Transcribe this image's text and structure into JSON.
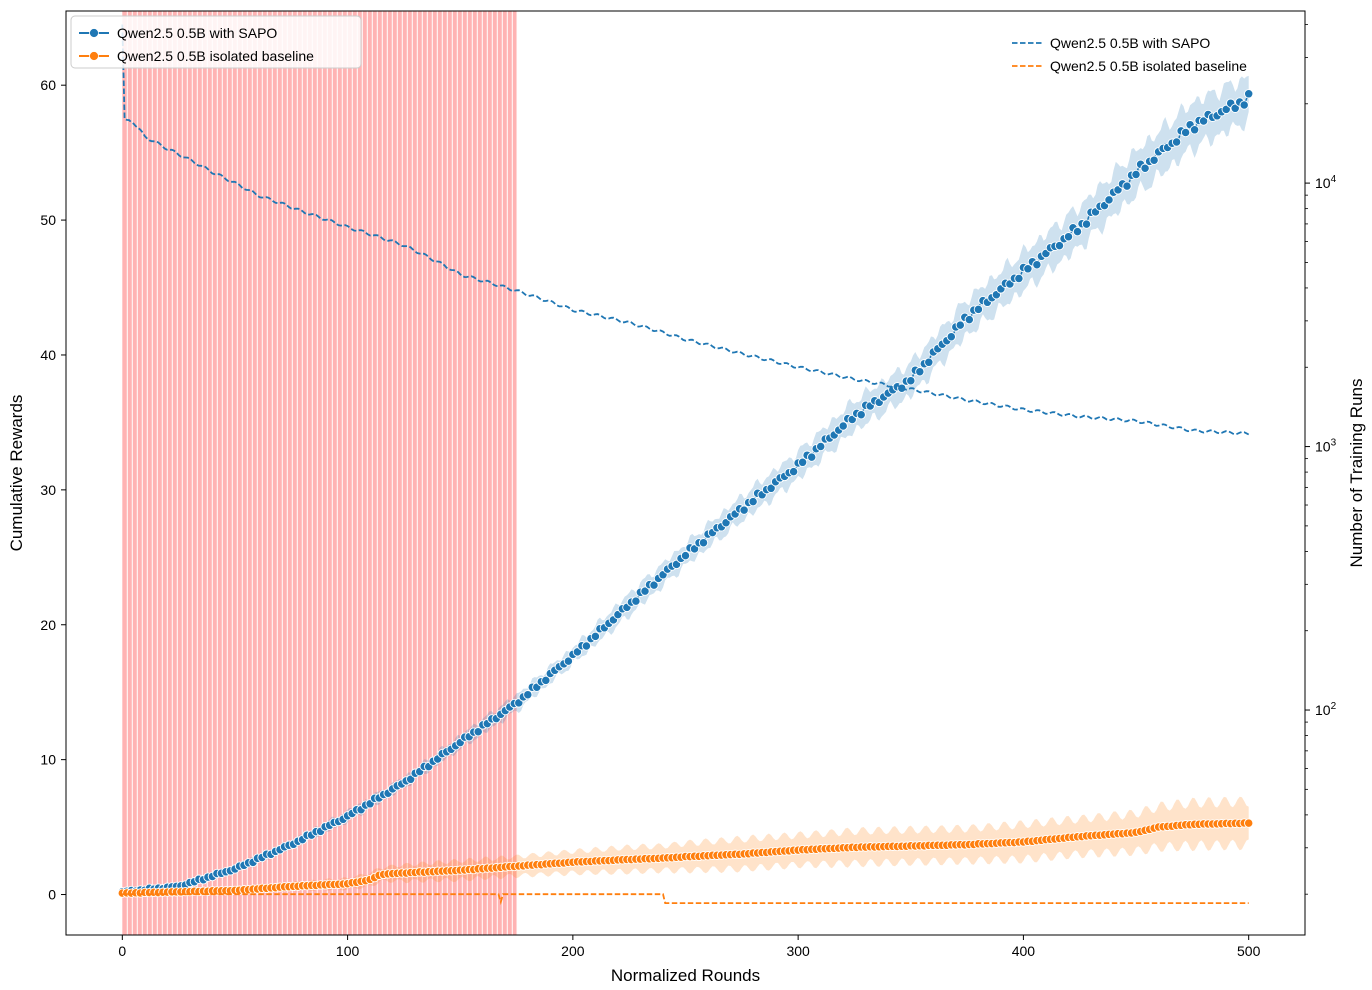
{
  "chart_data": {
    "type": "line",
    "xlabel": "Normalized Rounds",
    "ylabel": "Cumulative Rewards",
    "ylabel_right": "Number of Training Runs",
    "xlim": [
      -25,
      525
    ],
    "ylim": [
      -3,
      65.5
    ],
    "ylim_right": [
      14,
      45000
    ],
    "yscale_right": "log",
    "x_ticks": [
      0,
      100,
      200,
      300,
      400,
      500
    ],
    "x_tick_labels": [
      "0",
      "100",
      "200",
      "300",
      "400",
      "500"
    ],
    "y_ticks": [
      0,
      10,
      20,
      30,
      40,
      50,
      60
    ],
    "y_tick_labels": [
      "0",
      "10",
      "20",
      "30",
      "40",
      "50",
      "60"
    ],
    "y_right_ticks": [
      100,
      1000,
      10000
    ],
    "y_right_base": "10",
    "y_right_exponents": [
      "2",
      "3",
      "4"
    ],
    "shaded_region": {
      "x_start": 0,
      "x_end": 175,
      "color": "#ffb3b3"
    },
    "grid": false,
    "series": [
      {
        "name": "Qwen2.5 0.5B with SAPO",
        "axis": "left",
        "color": "#1f77b4",
        "style": "line-markers",
        "x": [
          0,
          25,
          50,
          75,
          100,
          125,
          150,
          175,
          200,
          225,
          250,
          275,
          300,
          325,
          350,
          375,
          400,
          425,
          450,
          475,
          500
        ],
        "y": [
          0.2,
          0.6,
          1.9,
          3.7,
          5.8,
          8.3,
          11.3,
          14.2,
          17.7,
          21.5,
          25.2,
          28.6,
          31.8,
          35.5,
          38.2,
          42.8,
          46.2,
          49.5,
          53.5,
          57.0,
          59.0
        ],
        "band": [
          0.1,
          0.2,
          0.3,
          0.3,
          0.4,
          0.4,
          0.5,
          0.6,
          0.6,
          0.8,
          0.8,
          0.9,
          1.0,
          1.1,
          1.2,
          1.3,
          1.4,
          1.5,
          1.6,
          1.7,
          1.6
        ]
      },
      {
        "name": "Qwen2.5 0.5B isolated baseline",
        "axis": "left",
        "color": "#ff7f0e",
        "style": "line-markers",
        "x": [
          0,
          25,
          50,
          75,
          100,
          110,
          115,
          125,
          150,
          175,
          200,
          225,
          240,
          250,
          275,
          300,
          325,
          350,
          375,
          400,
          425,
          450,
          460,
          475,
          500
        ],
        "y": [
          0.1,
          0.2,
          0.3,
          0.6,
          0.8,
          1.1,
          1.5,
          1.6,
          1.8,
          2.1,
          2.4,
          2.6,
          2.7,
          2.8,
          3.0,
          3.3,
          3.5,
          3.6,
          3.7,
          3.9,
          4.3,
          4.6,
          5.0,
          5.2,
          5.3
        ],
        "band": [
          0.1,
          0.1,
          0.2,
          0.3,
          0.4,
          0.5,
          0.5,
          0.6,
          0.7,
          0.7,
          0.8,
          0.9,
          0.9,
          1.0,
          1.1,
          1.1,
          1.2,
          1.2,
          1.2,
          1.3,
          1.3,
          1.4,
          1.5,
          1.6,
          1.6
        ]
      },
      {
        "name": "Qwen2.5 0.5B with SAPO",
        "axis": "right",
        "color": "#1f77b4",
        "style": "dashed",
        "x": [
          0,
          1,
          5,
          10,
          20,
          40,
          60,
          80,
          100,
          125,
          150,
          175,
          200,
          225,
          250,
          275,
          300,
          325,
          350,
          375,
          400,
          425,
          450,
          475,
          500
        ],
        "y": [
          40000,
          17500,
          17000,
          15000,
          13500,
          11000,
          9000,
          7800,
          6800,
          5800,
          4500,
          3900,
          3300,
          2950,
          2550,
          2250,
          2000,
          1800,
          1650,
          1500,
          1380,
          1300,
          1250,
          1150,
          1120
        ]
      },
      {
        "name": "Qwen2.5 0.5B isolated baseline",
        "axis": "right",
        "color": "#ff7f0e",
        "style": "dashed",
        "x": [
          0,
          100,
          167,
          168,
          169,
          170,
          240,
          241,
          500
        ],
        "y": [
          20,
          20,
          20,
          18.7,
          20,
          20,
          20,
          18.5,
          18.5
        ]
      }
    ],
    "legend_left": {
      "placement": "top-left",
      "entries": [
        "Qwen2.5 0.5B with SAPO",
        "Qwen2.5 0.5B isolated baseline"
      ]
    },
    "legend_right": {
      "placement": "top-right",
      "entries": [
        "Qwen2.5 0.5B with SAPO",
        "Qwen2.5 0.5B isolated baseline"
      ]
    }
  }
}
